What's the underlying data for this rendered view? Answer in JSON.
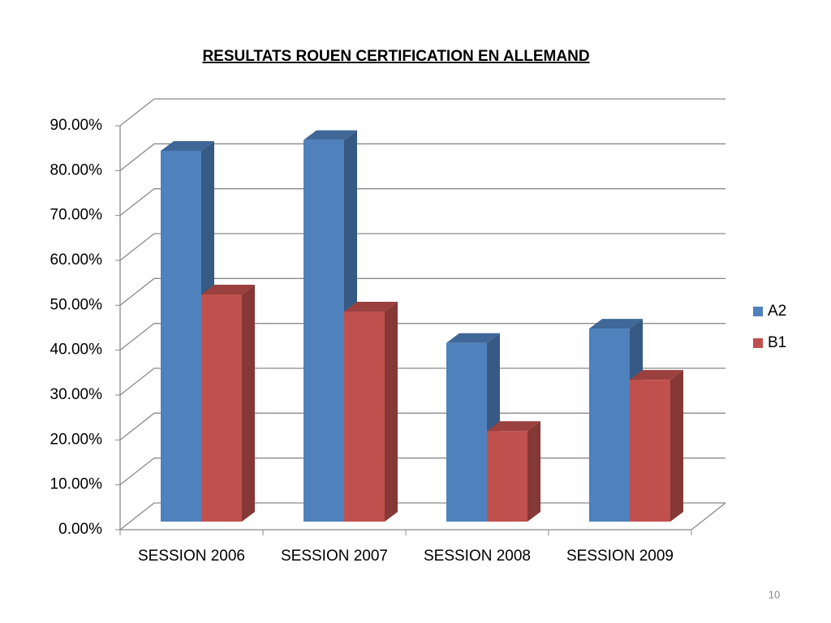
{
  "chart_data": {
    "type": "bar3d",
    "title": "RESULTATS ROUEN CERTIFICATION EN ALLEMAND",
    "categories": [
      "SESSION 2006",
      "SESSION 2007",
      "SESSION 2008",
      "SESSION 2009"
    ],
    "series": [
      {
        "name": "A2",
        "color": "#4f81bd",
        "values": [
          82.6,
          85,
          39.8,
          43
        ]
      },
      {
        "name": "B1",
        "color": "#c0504d",
        "values": [
          50.6,
          46.8,
          20.2,
          31.6
        ]
      }
    ],
    "ylim": [
      0,
      90
    ],
    "yticks": [
      {
        "value": 0,
        "label": "0.00%"
      },
      {
        "value": 10,
        "label": "10.00%"
      },
      {
        "value": 20,
        "label": "20.00%"
      },
      {
        "value": 30,
        "label": "30.00%"
      },
      {
        "value": 40,
        "label": "40.00%"
      },
      {
        "value": 50,
        "label": "50.00%"
      },
      {
        "value": 60,
        "label": "60.00%"
      },
      {
        "value": 70,
        "label": "70.00%"
      },
      {
        "value": 80,
        "label": "80.00%"
      },
      {
        "value": 90,
        "label": "90.00%"
      }
    ],
    "grid": true,
    "legend": "right"
  },
  "page_number": "10"
}
